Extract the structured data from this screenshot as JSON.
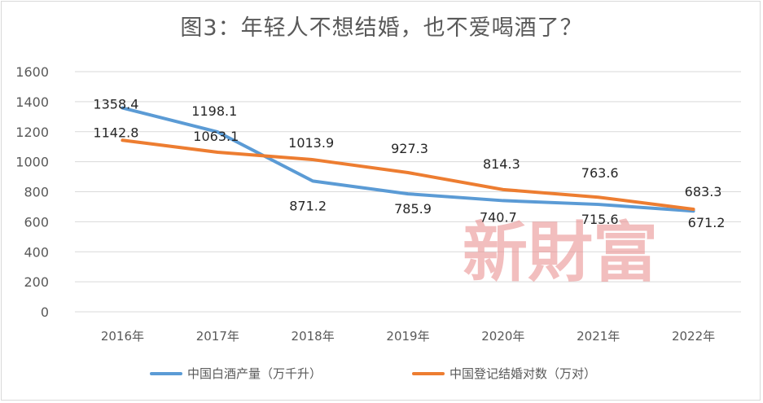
{
  "chart_data": {
    "type": "line",
    "title": "图3：年轻人不想结婚，也不爱喝酒了？",
    "categories": [
      "2016年",
      "2017年",
      "2018年",
      "2019年",
      "2020年",
      "2021年",
      "2022年"
    ],
    "y_ticks": [
      "0",
      "200",
      "400",
      "600",
      "800",
      "1000",
      "1200",
      "1400",
      "1600"
    ],
    "ylim": [
      0,
      1600
    ],
    "grid": true,
    "legend_position": "bottom",
    "series": [
      {
        "name": "中国白酒产量（万千升）",
        "color": "#5b9bd5",
        "values": [
          1358.4,
          1198.1,
          871.2,
          785.9,
          740.7,
          715.6,
          671.2
        ],
        "labels": [
          "1358.4",
          "1198.1",
          "871.2",
          "785.9",
          "740.7",
          "715.6",
          "671.2"
        ]
      },
      {
        "name": "中国登记结婚对数（万对）",
        "color": "#ed7d31",
        "values": [
          1142.8,
          1063.1,
          1013.9,
          927.3,
          814.3,
          763.6,
          683.3
        ],
        "labels": [
          "1142.8",
          "1063.1",
          "1013.9",
          "927.3",
          "814.3",
          "763.6",
          "683.3"
        ]
      }
    ],
    "watermark": "新財富"
  }
}
